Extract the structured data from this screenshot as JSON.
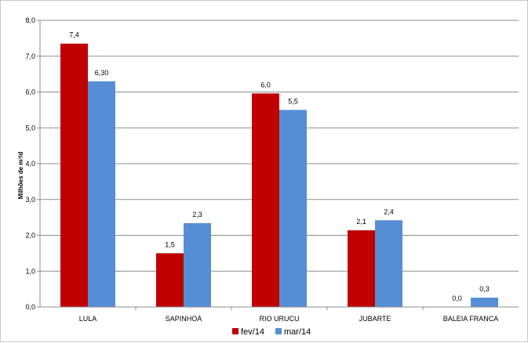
{
  "chart_data": {
    "type": "bar",
    "title": "",
    "xlabel": "",
    "ylabel": "Milhões de m³/d",
    "ylim": [
      0,
      8
    ],
    "yticks": [
      "0,0",
      "1,0",
      "2,0",
      "3,0",
      "4,0",
      "5,0",
      "6,0",
      "7,0",
      "8,0"
    ],
    "categories": [
      "LULA",
      "SAPINHOÁ",
      "RIO URUCU",
      "JUBARTE",
      "BALEIA FRANCA"
    ],
    "series": [
      {
        "name": "fev/14",
        "color": "#c00000",
        "values": [
          7.35,
          1.5,
          5.96,
          2.14,
          0.0
        ],
        "labels": [
          "7,4",
          "1,5",
          "6,0",
          "2,1",
          "0,0"
        ]
      },
      {
        "name": "mar/14",
        "color": "#558ed5",
        "values": [
          6.3,
          2.34,
          5.5,
          2.42,
          0.26
        ],
        "labels": [
          "6,30",
          "2,3",
          "5,5",
          "2,4",
          "0,3"
        ]
      }
    ],
    "grid": true,
    "legend": "bottom"
  }
}
